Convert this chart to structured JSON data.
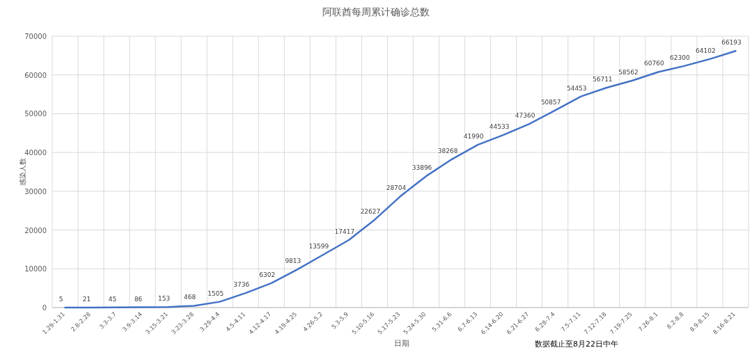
{
  "chart_data": {
    "type": "line",
    "title": "阿联酋每周累计确诊总数",
    "xlabel": "日期",
    "ylabel": "感染人数",
    "categories": [
      "1.29-1.31",
      "2.8-2.28",
      "3.3-3.7",
      "3.9-3.14",
      "3.15-3.21",
      "3.23-3.28",
      "3.29-4.4",
      "4.5-4.11",
      "4.12-4.17",
      "4.19-4.25",
      "4.26-5.2",
      "5.3-5.9",
      "5.10-5.16",
      "5.17-5.23",
      "5.24-5.30",
      "5.31-6.6",
      "6.7-6.13",
      "6.14-6.20",
      "6.21-6.27",
      "6.28-7.4",
      "7.5-7.11",
      "7.12-7.18",
      "7.19-7.25",
      "7.26-8.1",
      "8.2-8.8",
      "8.9-8.15",
      "8.16-8.21"
    ],
    "series": [
      {
        "color": "#4472c4",
        "values": [
          5,
          21,
          45,
          86,
          153,
          468,
          1505,
          3736,
          6302,
          9813,
          13599,
          17417,
          22627,
          28704,
          33896,
          38268,
          41990,
          44533,
          47360,
          50857,
          54453,
          56711,
          58562,
          60760,
          62300,
          64102,
          66193
        ]
      }
    ],
    "ylim": [
      0,
      70000
    ],
    "yticks": [
      0,
      10000,
      20000,
      30000,
      40000,
      50000,
      60000,
      70000
    ],
    "grid": true,
    "data_labels": true,
    "marker": "none",
    "line_style": "solid",
    "annotations": [
      "数据截止至8月22日中午"
    ]
  }
}
